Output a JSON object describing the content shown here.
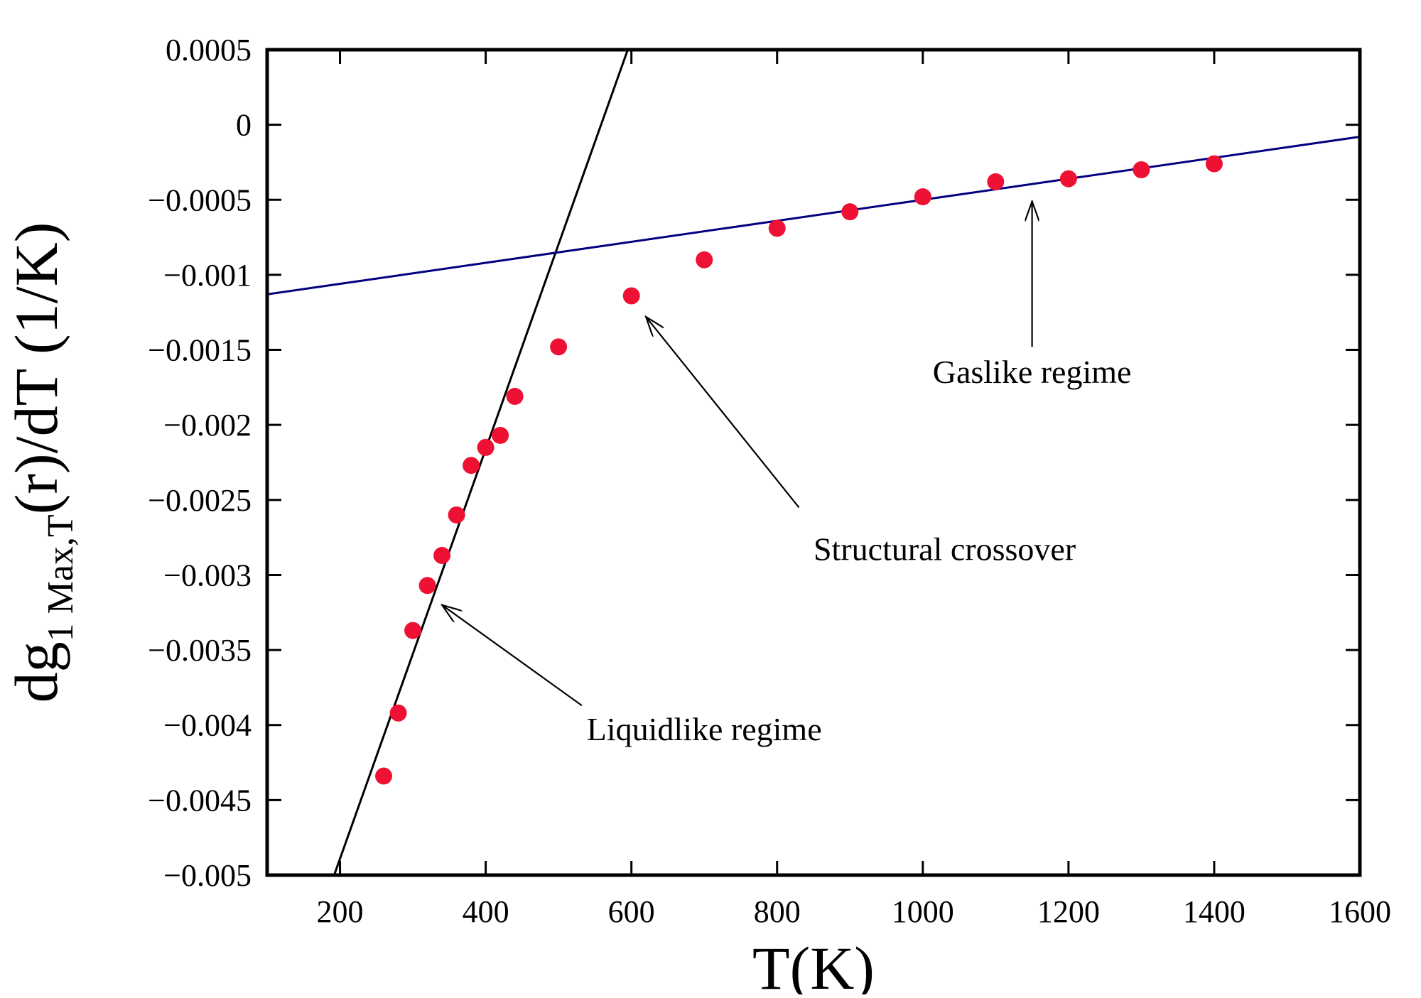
{
  "chart_data": {
    "type": "scatter",
    "xlabel": "T(K)",
    "ylabel": {
      "prefix": "dg",
      "subscript": "1 Max,T",
      "suffix": "(r)/dT (1/K)"
    },
    "xlim": [
      100,
      1600
    ],
    "ylim": [
      -0.005,
      0.0005
    ],
    "x_ticks": [
      {
        "value": 200,
        "label": "200"
      },
      {
        "value": 400,
        "label": "400"
      },
      {
        "value": 600,
        "label": "600"
      },
      {
        "value": 800,
        "label": "800"
      },
      {
        "value": 1000,
        "label": "1000"
      },
      {
        "value": 1200,
        "label": "1200"
      },
      {
        "value": 1400,
        "label": "1400"
      },
      {
        "value": 1600,
        "label": "1600"
      }
    ],
    "y_ticks": [
      {
        "value": 0.0005,
        "label": "0.0005"
      },
      {
        "value": 0,
        "label": "0"
      },
      {
        "value": -0.0005,
        "label": "−0.0005"
      },
      {
        "value": -0.001,
        "label": "−0.001"
      },
      {
        "value": -0.0015,
        "label": "−0.0015"
      },
      {
        "value": -0.002,
        "label": "−0.002"
      },
      {
        "value": -0.0025,
        "label": "−0.0025"
      },
      {
        "value": -0.003,
        "label": "−0.003"
      },
      {
        "value": -0.0035,
        "label": "−0.0035"
      },
      {
        "value": -0.004,
        "label": "−0.004"
      },
      {
        "value": -0.0045,
        "label": "−0.0045"
      },
      {
        "value": -0.005,
        "label": "−0.005"
      }
    ],
    "series": [
      {
        "name": "data",
        "color": "#ee1133",
        "points": [
          {
            "x": 260,
            "y": -0.00434
          },
          {
            "x": 280,
            "y": -0.00392
          },
          {
            "x": 300,
            "y": -0.00337
          },
          {
            "x": 320,
            "y": -0.00307
          },
          {
            "x": 340,
            "y": -0.00287
          },
          {
            "x": 360,
            "y": -0.0026
          },
          {
            "x": 380,
            "y": -0.00227
          },
          {
            "x": 400,
            "y": -0.00215
          },
          {
            "x": 420,
            "y": -0.00207
          },
          {
            "x": 440,
            "y": -0.00181
          },
          {
            "x": 500,
            "y": -0.00148
          },
          {
            "x": 600,
            "y": -0.00114
          },
          {
            "x": 700,
            "y": -0.0009
          },
          {
            "x": 800,
            "y": -0.00069
          },
          {
            "x": 900,
            "y": -0.00058
          },
          {
            "x": 1000,
            "y": -0.00048
          },
          {
            "x": 1100,
            "y": -0.00038
          },
          {
            "x": 1200,
            "y": -0.00036
          },
          {
            "x": 1300,
            "y": -0.0003
          },
          {
            "x": 1400,
            "y": -0.00026
          }
        ]
      }
    ],
    "fit_lines": [
      {
        "name": "liquidlike-fit",
        "color": "#000000",
        "x1": 192,
        "y1": -0.005,
        "x2": 595,
        "y2": 0.0005
      },
      {
        "name": "gaslike-fit",
        "color": "#000080",
        "x1": 100,
        "y1": -0.00113,
        "x2": 1600,
        "y2": -8e-05
      }
    ],
    "annotations": [
      {
        "name": "gaslike-label",
        "text": "Gaslike regime",
        "x": 1150,
        "y": -0.00172,
        "arrow_to_x": 1150,
        "arrow_to_y": -0.00051,
        "arrow_from_x": 1150,
        "arrow_from_y": -0.00148
      },
      {
        "name": "crossover-label",
        "text": "Structural crossover",
        "x": 1030,
        "y": -0.0029,
        "arrow_to_x": 620,
        "arrow_to_y": -0.00128,
        "arrow_from_x": 830,
        "arrow_from_y": -0.00255
      },
      {
        "name": "liquidlike-label",
        "text": "Liquidlike regime",
        "x": 700,
        "y": -0.0041,
        "arrow_to_x": 340,
        "arrow_to_y": -0.0032,
        "arrow_from_x": 532,
        "arrow_from_y": -0.00387
      }
    ]
  }
}
